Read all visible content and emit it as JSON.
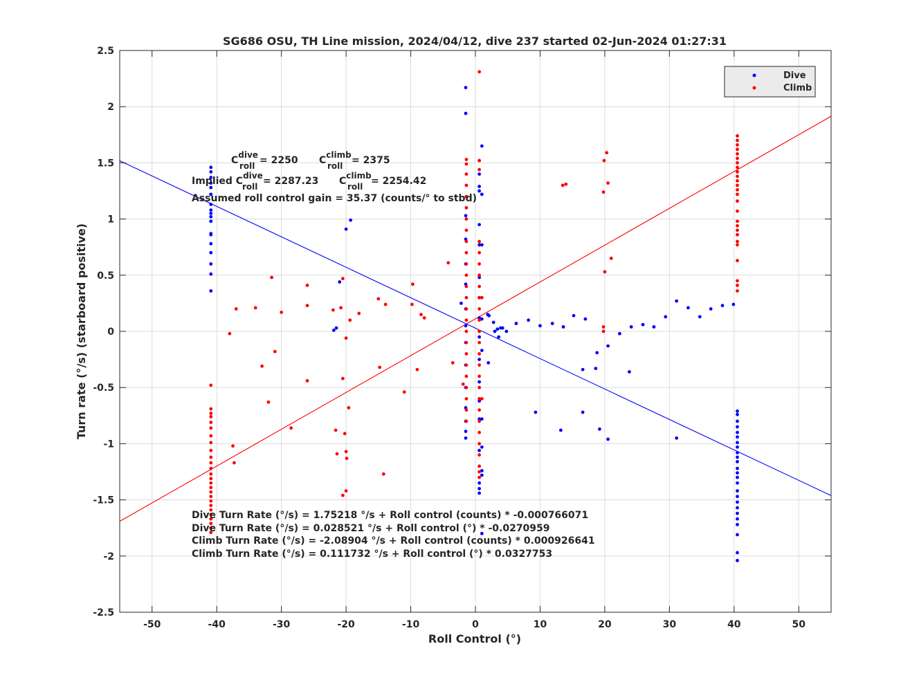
{
  "chart_data": {
    "type": "scatter",
    "title": "SG686 OSU, TH Line mission, 2024/04/12, dive 237 started 02-Jun-2024 01:27:31",
    "xlabel": "Roll Control (°)",
    "ylabel": "Turn rate (°/s) (starboard positive)",
    "xlim": [
      -55,
      55
    ],
    "ylim": [
      -2.5,
      2.5
    ],
    "xticks": [
      -50,
      -40,
      -30,
      -20,
      -10,
      0,
      10,
      20,
      30,
      40,
      50
    ],
    "yticks": [
      -2.5,
      -2,
      -1.5,
      -1,
      -0.5,
      0,
      0.5,
      1,
      1.5,
      2,
      2.5
    ],
    "grid": true,
    "legend_position": "top-right",
    "series": [
      {
        "name": "Dive",
        "color": "#0000ff",
        "points": [
          [
            -40.9,
            1.46
          ],
          [
            -40.9,
            1.42
          ],
          [
            -40.9,
            1.37
          ],
          [
            -40.9,
            1.32
          ],
          [
            -40.9,
            1.28
          ],
          [
            -40.9,
            1.22
          ],
          [
            -40.9,
            1.13
          ],
          [
            -40.9,
            1.08
          ],
          [
            -40.9,
            1.05
          ],
          [
            -40.9,
            1.02
          ],
          [
            -40.9,
            0.98
          ],
          [
            -40.9,
            0.87
          ],
          [
            -40.9,
            0.86
          ],
          [
            -40.9,
            0.78
          ],
          [
            -40.9,
            0.7
          ],
          [
            -40.9,
            0.6
          ],
          [
            -40.9,
            0.51
          ],
          [
            -40.9,
            0.36
          ],
          [
            -20.0,
            0.91
          ],
          [
            -19.3,
            0.99
          ],
          [
            -21.0,
            0.44
          ],
          [
            -21.5,
            0.03
          ],
          [
            -21.9,
            0.01
          ],
          [
            -1.5,
            2.17
          ],
          [
            -1.5,
            1.94
          ],
          [
            -1.5,
            1.03
          ],
          [
            -1.5,
            0.82
          ],
          [
            -1.5,
            0.6
          ],
          [
            -1.5,
            0.42
          ],
          [
            -1.5,
            0.2
          ],
          [
            -1.5,
            0.05
          ],
          [
            -1.5,
            -0.1
          ],
          [
            -1.5,
            -0.3
          ],
          [
            -1.5,
            -0.5
          ],
          [
            -1.5,
            -0.68
          ],
          [
            -1.5,
            -0.8
          ],
          [
            -1.5,
            -0.89
          ],
          [
            -1.5,
            -0.95
          ],
          [
            -2.2,
            0.25
          ],
          [
            0.6,
            1.52
          ],
          [
            0.6,
            1.4
          ],
          [
            0.6,
            1.29
          ],
          [
            0.6,
            1.25
          ],
          [
            0.6,
            0.95
          ],
          [
            0.6,
            0.77
          ],
          [
            0.6,
            0.48
          ],
          [
            0.6,
            0.3
          ],
          [
            0.6,
            0.12
          ],
          [
            0.6,
            -0.05
          ],
          [
            0.6,
            -0.25
          ],
          [
            0.6,
            -0.45
          ],
          [
            0.6,
            -0.62
          ],
          [
            0.6,
            -0.78
          ],
          [
            0.6,
            -1.06
          ],
          [
            0.6,
            -1.35
          ],
          [
            0.6,
            -1.4
          ],
          [
            0.6,
            -1.44
          ],
          [
            1.0,
            1.65
          ],
          [
            1.0,
            1.22
          ],
          [
            1.0,
            0.77
          ],
          [
            1.0,
            0.11
          ],
          [
            1.0,
            -0.17
          ],
          [
            1.0,
            -0.78
          ],
          [
            1.0,
            -1.03
          ],
          [
            1.0,
            -1.24
          ],
          [
            1.0,
            -1.28
          ],
          [
            1.0,
            -1.8
          ],
          [
            1.9,
            0.15
          ],
          [
            2.1,
            0.14
          ],
          [
            2.0,
            -0.28
          ],
          [
            2.8,
            0.08
          ],
          [
            3.0,
            0.0
          ],
          [
            3.4,
            0.02
          ],
          [
            3.6,
            -0.05
          ],
          [
            3.9,
            0.03
          ],
          [
            4.2,
            0.03
          ],
          [
            4.8,
            0.0
          ],
          [
            6.3,
            0.07
          ],
          [
            8.2,
            0.1
          ],
          [
            10.0,
            0.05
          ],
          [
            11.9,
            0.07
          ],
          [
            13.6,
            0.04
          ],
          [
            15.2,
            0.14
          ],
          [
            17.0,
            0.11
          ],
          [
            9.3,
            -0.72
          ],
          [
            13.2,
            -0.88
          ],
          [
            16.6,
            -0.72
          ],
          [
            16.6,
            -0.34
          ],
          [
            18.6,
            -0.33
          ],
          [
            18.8,
            -0.19
          ],
          [
            19.2,
            -0.87
          ],
          [
            20.5,
            -0.96
          ],
          [
            20.5,
            -0.13
          ],
          [
            22.3,
            -0.02
          ],
          [
            23.8,
            -0.36
          ],
          [
            24.1,
            0.04
          ],
          [
            25.9,
            0.06
          ],
          [
            27.6,
            0.04
          ],
          [
            29.4,
            0.13
          ],
          [
            31.1,
            0.27
          ],
          [
            31.1,
            -0.95
          ],
          [
            32.9,
            0.21
          ],
          [
            34.7,
            0.13
          ],
          [
            36.4,
            0.2
          ],
          [
            38.2,
            0.23
          ],
          [
            39.9,
            0.24
          ],
          [
            40.5,
            -0.71
          ],
          [
            40.5,
            -0.74
          ],
          [
            40.5,
            -0.8
          ],
          [
            40.5,
            -0.85
          ],
          [
            40.5,
            -0.9
          ],
          [
            40.5,
            -0.94
          ],
          [
            40.5,
            -0.99
          ],
          [
            40.5,
            -1.03
          ],
          [
            40.5,
            -1.08
          ],
          [
            40.5,
            -1.12
          ],
          [
            40.5,
            -1.16
          ],
          [
            40.5,
            -1.22
          ],
          [
            40.5,
            -1.26
          ],
          [
            40.5,
            -1.3
          ],
          [
            40.5,
            -1.35
          ],
          [
            40.5,
            -1.42
          ],
          [
            40.5,
            -1.47
          ],
          [
            40.5,
            -1.52
          ],
          [
            40.5,
            -1.57
          ],
          [
            40.5,
            -1.62
          ],
          [
            40.5,
            -1.67
          ],
          [
            40.5,
            -1.72
          ],
          [
            40.5,
            -1.81
          ],
          [
            40.5,
            -1.97
          ],
          [
            40.5,
            -2.04
          ]
        ]
      },
      {
        "name": "Climb",
        "color": "#ff0000",
        "points": [
          [
            -40.9,
            -0.48
          ],
          [
            -40.9,
            -0.69
          ],
          [
            -40.9,
            -0.73
          ],
          [
            -40.9,
            -0.76
          ],
          [
            -40.9,
            -0.81
          ],
          [
            -40.9,
            -0.86
          ],
          [
            -40.9,
            -0.93
          ],
          [
            -40.9,
            -0.99
          ],
          [
            -40.9,
            -1.06
          ],
          [
            -40.9,
            -1.12
          ],
          [
            -40.9,
            -1.17
          ],
          [
            -40.9,
            -1.22
          ],
          [
            -40.9,
            -1.27
          ],
          [
            -40.9,
            -1.31
          ],
          [
            -40.9,
            -1.35
          ],
          [
            -40.9,
            -1.39
          ],
          [
            -40.9,
            -1.43
          ],
          [
            -40.9,
            -1.47
          ],
          [
            -40.9,
            -1.51
          ],
          [
            -40.9,
            -1.55
          ],
          [
            -40.9,
            -1.59
          ],
          [
            -40.9,
            -1.63
          ],
          [
            -40.9,
            -1.67
          ],
          [
            -40.9,
            -1.71
          ],
          [
            -40.9,
            -1.75
          ],
          [
            -40.9,
            -1.79
          ],
          [
            -38.0,
            -0.02
          ],
          [
            -37.0,
            0.2
          ],
          [
            -37.5,
            -1.02
          ],
          [
            -37.3,
            -1.17
          ],
          [
            -34.0,
            0.21
          ],
          [
            -33.0,
            -0.31
          ],
          [
            -32.0,
            -0.63
          ],
          [
            -31.5,
            0.48
          ],
          [
            -31.0,
            -0.18
          ],
          [
            -30.0,
            0.17
          ],
          [
            -28.5,
            -0.86
          ],
          [
            -26.0,
            0.41
          ],
          [
            -26.0,
            0.23
          ],
          [
            -26.0,
            -0.44
          ],
          [
            -22.0,
            0.19
          ],
          [
            -21.6,
            -0.88
          ],
          [
            -21.4,
            -1.09
          ],
          [
            -20.8,
            0.21
          ],
          [
            -20.5,
            0.47
          ],
          [
            -20.5,
            -0.42
          ],
          [
            -20.5,
            -1.46
          ],
          [
            -20.2,
            -0.91
          ],
          [
            -20.0,
            -1.07
          ],
          [
            -19.9,
            -1.13
          ],
          [
            -20.0,
            -1.42
          ],
          [
            -20.0,
            -0.06
          ],
          [
            -19.6,
            -0.68
          ],
          [
            -19.4,
            0.1
          ],
          [
            -18.0,
            0.16
          ],
          [
            -15.0,
            0.29
          ],
          [
            -14.8,
            -0.32
          ],
          [
            -13.9,
            0.24
          ],
          [
            -14.2,
            -1.27
          ],
          [
            -11.0,
            -0.54
          ],
          [
            -9.7,
            0.42
          ],
          [
            -9.8,
            0.24
          ],
          [
            -9.0,
            -0.34
          ],
          [
            -8.4,
            0.15
          ],
          [
            -7.9,
            0.12
          ],
          [
            -4.2,
            0.61
          ],
          [
            -3.5,
            -0.28
          ],
          [
            -1.9,
            -0.47
          ],
          [
            -1.4,
            1.53
          ],
          [
            -1.4,
            1.49
          ],
          [
            -1.4,
            1.4
          ],
          [
            -1.4,
            1.3
          ],
          [
            -1.4,
            1.2
          ],
          [
            -1.4,
            1.1
          ],
          [
            -1.4,
            1.0
          ],
          [
            -1.4,
            0.9
          ],
          [
            -1.4,
            0.8
          ],
          [
            -1.4,
            0.7
          ],
          [
            -1.4,
            0.6
          ],
          [
            -1.4,
            0.5
          ],
          [
            -1.4,
            0.4
          ],
          [
            -1.4,
            0.3
          ],
          [
            -1.4,
            0.2
          ],
          [
            -1.4,
            0.1
          ],
          [
            -1.4,
            0.0
          ],
          [
            -1.4,
            -0.1
          ],
          [
            -1.4,
            -0.2
          ],
          [
            -1.4,
            -0.3
          ],
          [
            -1.4,
            -0.4
          ],
          [
            -1.4,
            -0.5
          ],
          [
            -1.4,
            -0.6
          ],
          [
            -1.4,
            -0.7
          ],
          [
            -1.4,
            -0.8
          ],
          [
            0.6,
            2.31
          ],
          [
            0.6,
            1.52
          ],
          [
            0.6,
            1.44
          ],
          [
            0.6,
            0.8
          ],
          [
            0.6,
            0.7
          ],
          [
            0.6,
            0.6
          ],
          [
            0.6,
            0.5
          ],
          [
            0.6,
            0.4
          ],
          [
            0.6,
            0.3
          ],
          [
            0.6,
            0.2
          ],
          [
            0.6,
            0.1
          ],
          [
            0.6,
            0.0
          ],
          [
            0.6,
            -0.1
          ],
          [
            0.6,
            -0.2
          ],
          [
            0.6,
            -0.3
          ],
          [
            0.6,
            -0.4
          ],
          [
            0.6,
            -0.5
          ],
          [
            0.6,
            -0.6
          ],
          [
            0.6,
            -0.7
          ],
          [
            0.6,
            -0.8
          ],
          [
            0.6,
            -0.9
          ],
          [
            0.6,
            -1.0
          ],
          [
            0.6,
            -1.1
          ],
          [
            0.6,
            -1.2
          ],
          [
            0.6,
            -1.25
          ],
          [
            0.6,
            -1.3
          ],
          [
            1.0,
            0.3
          ],
          [
            1.0,
            -0.6
          ],
          [
            13.5,
            1.3
          ],
          [
            14.0,
            1.31
          ],
          [
            19.8,
            1.24
          ],
          [
            19.9,
            1.52
          ],
          [
            20.3,
            1.59
          ],
          [
            20.5,
            1.32
          ],
          [
            20.0,
            0.53
          ],
          [
            21.0,
            0.65
          ],
          [
            19.8,
            0.04
          ],
          [
            19.8,
            0.0
          ],
          [
            40.5,
            1.74
          ],
          [
            40.5,
            1.7
          ],
          [
            40.5,
            1.66
          ],
          [
            40.5,
            1.62
          ],
          [
            40.5,
            1.58
          ],
          [
            40.5,
            1.54
          ],
          [
            40.5,
            1.5
          ],
          [
            40.5,
            1.46
          ],
          [
            40.5,
            1.42
          ],
          [
            40.5,
            1.38
          ],
          [
            40.5,
            1.34
          ],
          [
            40.5,
            1.3
          ],
          [
            40.5,
            1.26
          ],
          [
            40.5,
            1.22
          ],
          [
            40.5,
            1.16
          ],
          [
            40.5,
            1.07
          ],
          [
            40.5,
            0.98
          ],
          [
            40.5,
            0.94
          ],
          [
            40.5,
            0.9
          ],
          [
            40.5,
            0.86
          ],
          [
            40.5,
            0.8
          ],
          [
            40.5,
            0.77
          ],
          [
            40.5,
            0.63
          ],
          [
            40.5,
            0.45
          ],
          [
            40.5,
            0.41
          ],
          [
            40.5,
            0.36
          ]
        ]
      }
    ],
    "fit_lines": [
      {
        "series": "Dive",
        "color": "#0000ff",
        "intercept": 0.028521,
        "slope": -0.0270959
      },
      {
        "series": "Climb",
        "color": "#ff0000",
        "intercept": 0.111732,
        "slope": 0.0327753
      }
    ],
    "annotations": {
      "c_roll_line": {
        "c1_main": "C",
        "c1_sup": "dive",
        "c1_sub": "roll",
        "c1_val": " = 2250",
        "c2_main": "C",
        "c2_sup": "climb",
        "c2_sub": "roll",
        "c2_val": " = 2375"
      },
      "implied_line": {
        "prefix": "Implied C",
        "c1_sup": "dive",
        "c1_sub": "roll",
        "c1_val": " = 2287.23",
        "c2_main": "C",
        "c2_sup": "climb",
        "c2_sub": "roll",
        "c2_val": " = 2254.42"
      },
      "gain_line": "Assumed roll control gain = 35.37 (counts/° to stbd)",
      "equations": [
        "Dive Turn Rate (°/s) = 1.75218 °/s + Roll control (counts) * -0.000766071",
        "Dive Turn Rate (°/s) = 0.028521 °/s + Roll control (°) * -0.0270959",
        "Climb Turn Rate (°/s) = -2.08904 °/s + Roll control (counts) * 0.000926641",
        "Climb Turn Rate (°/s) = 0.111732 °/s + Roll control (°) * 0.0327753"
      ]
    }
  }
}
